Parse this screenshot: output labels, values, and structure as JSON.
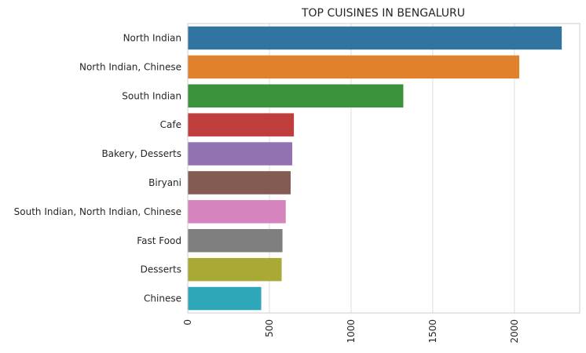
{
  "chart_data": {
    "type": "bar",
    "orientation": "horizontal",
    "title": "TOP CUISINES IN BENGALURU",
    "xlabel": "",
    "ylabel": "",
    "categories": [
      "North Indian",
      "North Indian, Chinese",
      "South Indian",
      "Cafe",
      "Bakery, Desserts",
      "Biryani",
      "South Indian, North Indian, Chinese",
      "Fast Food",
      "Desserts",
      "Chinese"
    ],
    "values": [
      2290,
      2030,
      1320,
      650,
      640,
      630,
      600,
      580,
      575,
      450
    ],
    "colors": [
      "#3274a1",
      "#e1812c",
      "#3a923a",
      "#c03d3e",
      "#9372b2",
      "#845b53",
      "#d684bd",
      "#7f7f7f",
      "#a9aa35",
      "#2ea8b8"
    ],
    "x_ticks": [
      "0",
      "500",
      "1000",
      "1500",
      "2000"
    ],
    "xlim": [
      0,
      2400
    ],
    "grid": true,
    "x_tick_rotation": "vertical"
  }
}
